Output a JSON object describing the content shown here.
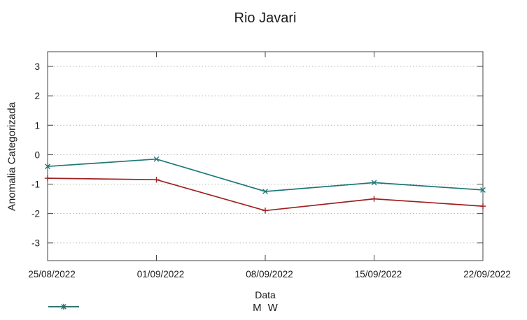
{
  "page": {
    "background": "#ffffff",
    "text_color": "#1a1a1a",
    "border_color": "#444444",
    "grid_color": "#b3b3b3"
  },
  "chart_data": {
    "type": "line",
    "title": "Rio Javari",
    "xlabel": "Data",
    "ylabel": "Anomalia Categorizada",
    "categories": [
      "25/08/2022",
      "01/09/2022",
      "08/09/2022",
      "15/09/2022",
      "22/09/2022"
    ],
    "y_ticks": [
      -3,
      -2,
      -1,
      0,
      1,
      2,
      3
    ],
    "ylim": [
      -3.6,
      3.5
    ],
    "grid": true,
    "legend_position": "bottom-center",
    "series": [
      {
        "name": "M",
        "color": "#a02020",
        "marker": "plus",
        "values": [
          -0.8,
          -0.85,
          -1.9,
          -1.5,
          -1.75
        ]
      },
      {
        "name": "W",
        "color": "#1f7878",
        "marker": "cross",
        "values": [
          -0.4,
          -0.15,
          -1.25,
          -0.95,
          -1.2
        ]
      }
    ]
  }
}
